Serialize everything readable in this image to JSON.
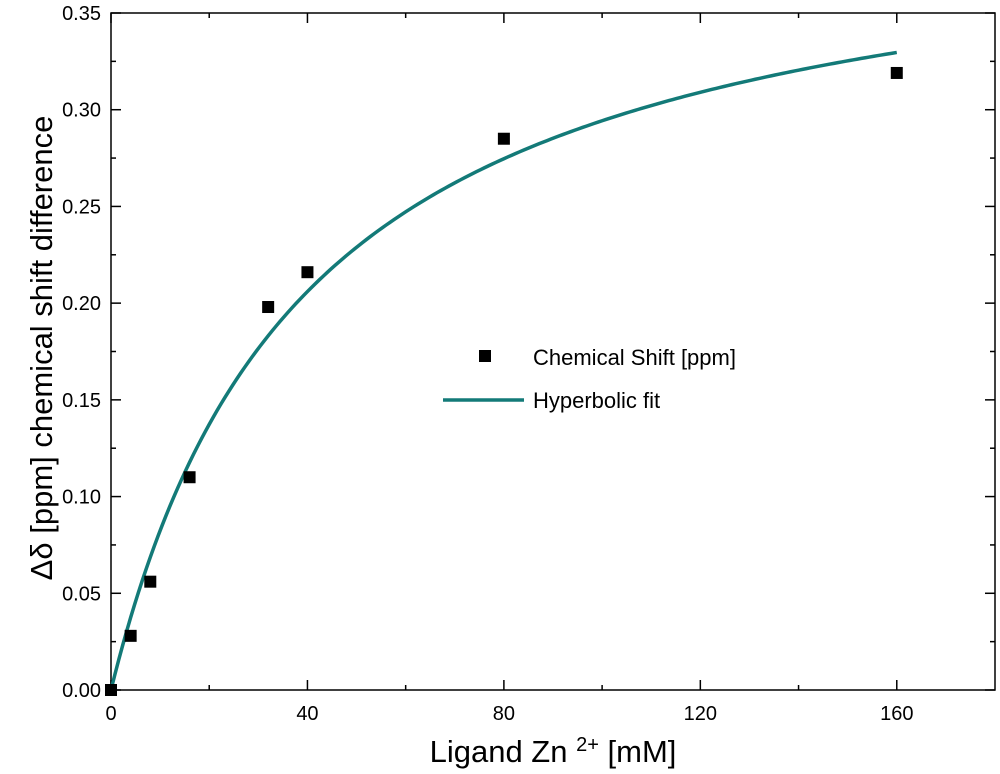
{
  "chart_data": {
    "type": "scatter",
    "title": "",
    "xlabel": {
      "main": "Ligand Zn",
      "sup": "2+",
      "unit": " [mM]"
    },
    "ylabel": "Δδ [ppm] chemical shift difference",
    "xlim": [
      0,
      180
    ],
    "ylim": [
      0,
      0.35
    ],
    "x_ticks": [
      0,
      40,
      80,
      120,
      160
    ],
    "x_tick_labels": [
      "0",
      "40",
      "80",
      "120",
      "160"
    ],
    "y_ticks": [
      0,
      0.05,
      0.1,
      0.15,
      0.2,
      0.25,
      0.3,
      0.35
    ],
    "y_tick_labels": [
      "0.00",
      "0.05",
      "0.10",
      "0.15",
      "0.20",
      "0.25",
      "0.30",
      "0.35"
    ],
    "grid": false,
    "legend_position": "center-right",
    "series": [
      {
        "name": "Chemical Shift [ppm]",
        "kind": "scatter",
        "marker": "square",
        "color": "#000000",
        "x": [
          0,
          4,
          8,
          16,
          32,
          40,
          80,
          160
        ],
        "y": [
          0.0,
          0.028,
          0.056,
          0.11,
          0.198,
          0.216,
          0.285,
          0.319
        ]
      },
      {
        "name": "Hyperbolic fit",
        "kind": "line",
        "color": "#137a78",
        "model": "y = Bmax*x/(Kd + x)",
        "params": {
          "Bmax": 0.412,
          "Kd": 40
        },
        "x_range": [
          0,
          160
        ]
      }
    ]
  }
}
